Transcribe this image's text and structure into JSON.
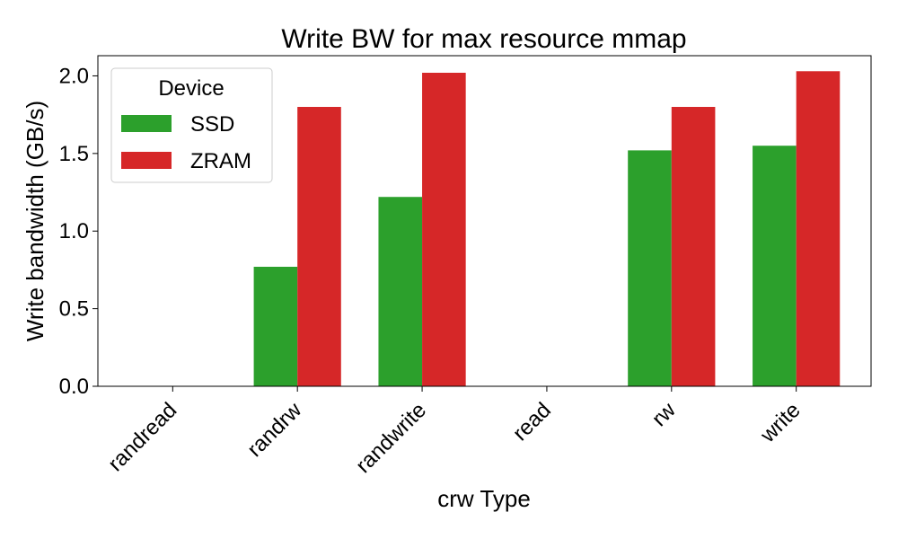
{
  "chart_data": {
    "type": "bar",
    "title": "Write BW for max resource mmap",
    "xlabel": "crw Type",
    "ylabel": "Write bandwidth (GB/s)",
    "categories": [
      "randread",
      "randrw",
      "randwrite",
      "read",
      "rw",
      "write"
    ],
    "ylim": [
      0,
      2.13
    ],
    "yticks": [
      "0.0",
      "0.5",
      "1.0",
      "1.5",
      "2.0"
    ],
    "legend": {
      "title": "Device",
      "placement": "upper-left"
    },
    "series": [
      {
        "name": "SSD",
        "color": "#2ca02c",
        "values": [
          0,
          0.77,
          1.22,
          0,
          1.52,
          1.55
        ]
      },
      {
        "name": "ZRAM",
        "color": "#d62728",
        "values": [
          0,
          1.8,
          2.02,
          0,
          1.8,
          2.03
        ]
      }
    ]
  }
}
